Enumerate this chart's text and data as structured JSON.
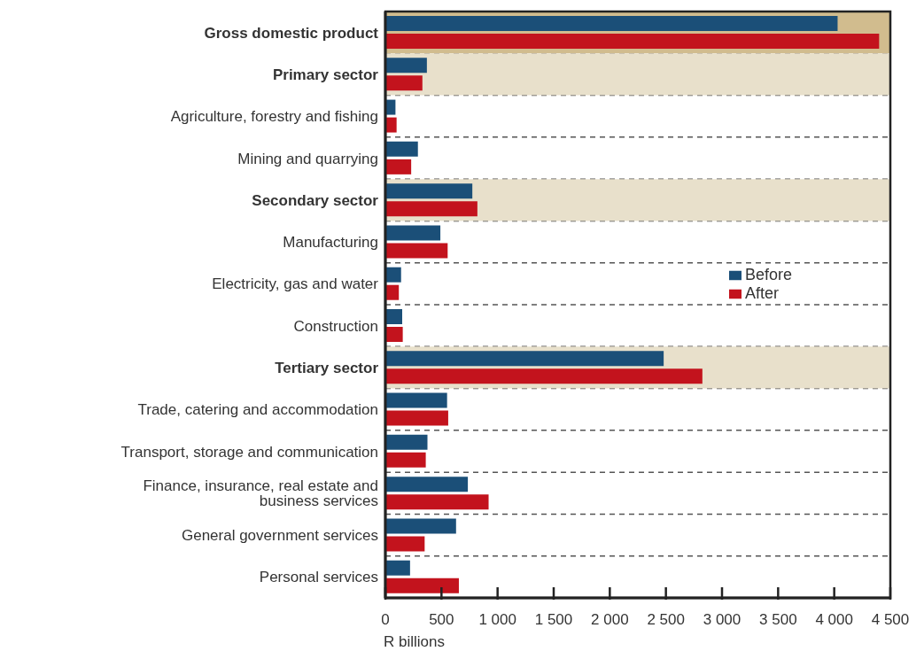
{
  "chart_data": {
    "type": "bar",
    "orientation": "horizontal",
    "xlabel": "R billions",
    "categories": [
      "Gross domestic product",
      "Primary sector",
      "Agriculture, forestry and fishing",
      "Mining and quarrying",
      "Secondary sector",
      "Manufacturing",
      "Electricity, gas and water",
      "Construction",
      "Tertiary sector",
      "Trade, catering and accommodation",
      "Transport, storage and communication",
      "Finance, insurance, real estate and business services",
      "General government services",
      "Personal services"
    ],
    "series": [
      {
        "name": "Before",
        "color": "#1b4f78",
        "values": [
          4030,
          370,
          90,
          290,
          775,
          490,
          140,
          150,
          2480,
          550,
          375,
          735,
          630,
          220
        ]
      },
      {
        "name": "After",
        "color": "#c3131d",
        "values": [
          4400,
          330,
          100,
          230,
          820,
          555,
          120,
          155,
          2825,
          560,
          360,
          920,
          350,
          655
        ]
      }
    ],
    "xlim": [
      0,
      4500
    ],
    "xticks": [
      0,
      500,
      {
        "value": 1000,
        "label": "1 000"
      },
      {
        "value": 1500,
        "label": "1 500"
      },
      {
        "value": 2000,
        "label": "2 000"
      },
      {
        "value": 2500,
        "label": "2 500"
      },
      {
        "value": 3000,
        "label": "3 000"
      },
      {
        "value": 3500,
        "label": "3 500"
      },
      {
        "value": 4000,
        "label": "4 000"
      },
      {
        "value": 4500,
        "label": "4 500"
      }
    ],
    "bands": [
      {
        "axis": "y",
        "from": "Gross domestic product",
        "to": "Gross domestic product",
        "color": "#d1bc8e"
      },
      {
        "axis": "y",
        "from": "Primary sector",
        "to": "Primary sector",
        "color": "#e8e0cb"
      },
      {
        "axis": "y",
        "from": "Secondary sector",
        "to": "Secondary sector",
        "color": "#e8e0cb"
      },
      {
        "axis": "y",
        "from": "Tertiary sector",
        "to": "Tertiary sector",
        "color": "#e8e0cb"
      }
    ],
    "grid": "y",
    "legend": "right"
  }
}
